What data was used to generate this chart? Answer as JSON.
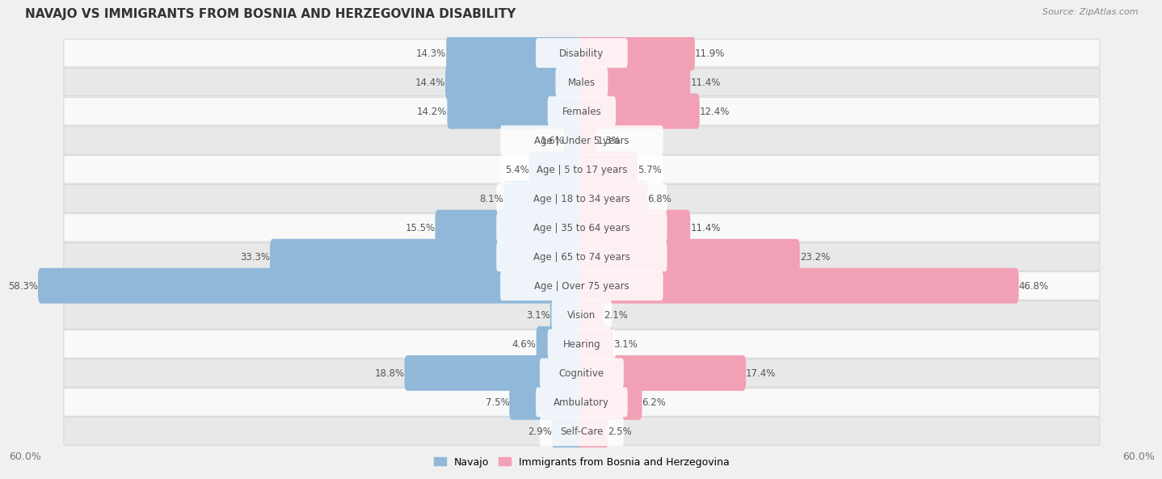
{
  "title": "NAVAJO VS IMMIGRANTS FROM BOSNIA AND HERZEGOVINA DISABILITY",
  "source": "Source: ZipAtlas.com",
  "categories": [
    "Disability",
    "Males",
    "Females",
    "Age | Under 5 years",
    "Age | 5 to 17 years",
    "Age | 18 to 34 years",
    "Age | 35 to 64 years",
    "Age | 65 to 74 years",
    "Age | Over 75 years",
    "Vision",
    "Hearing",
    "Cognitive",
    "Ambulatory",
    "Self-Care"
  ],
  "navajo_values": [
    14.3,
    14.4,
    14.2,
    1.6,
    5.4,
    8.1,
    15.5,
    33.3,
    58.3,
    3.1,
    4.6,
    18.8,
    7.5,
    2.9
  ],
  "bosnia_values": [
    11.9,
    11.4,
    12.4,
    1.3,
    5.7,
    6.8,
    11.4,
    23.2,
    46.8,
    2.1,
    3.1,
    17.4,
    6.2,
    2.5
  ],
  "navajo_color": "#91b8d8",
  "bosnia_color": "#f2a0b5",
  "max_value": 60.0,
  "background_color": "#f0f0f0",
  "row_bg_odd": "#f9f9f9",
  "row_bg_even": "#e8e8e8",
  "bar_height": 0.62,
  "legend_navajo": "Navajo",
  "legend_bosnia": "Immigrants from Bosnia and Herzegovina",
  "label_fontsize": 8.5,
  "value_fontsize": 8.5,
  "title_fontsize": 11
}
